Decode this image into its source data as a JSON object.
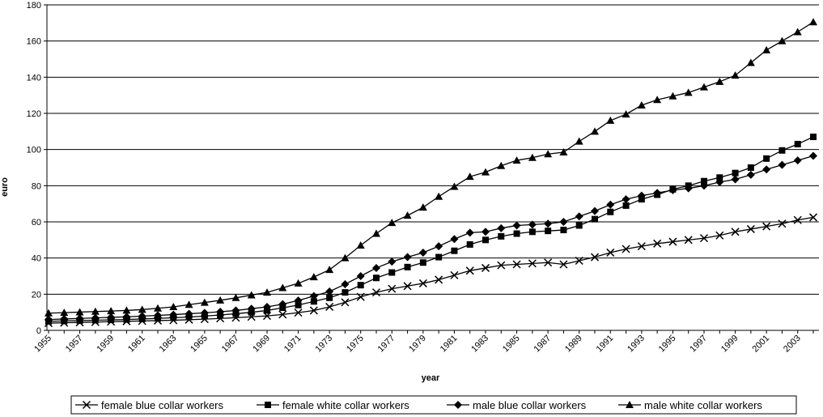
{
  "chart_data": {
    "type": "line",
    "title": "",
    "xlabel": "year",
    "ylabel": "euro",
    "ylim": [
      0,
      180
    ],
    "y_ticks": [
      0,
      20,
      40,
      60,
      80,
      100,
      120,
      140,
      160,
      180
    ],
    "xlim": [
      1955,
      2004
    ],
    "x_tick_labels": [
      "1955",
      "1957",
      "1959",
      "1961",
      "1963",
      "1965",
      "1967",
      "1969",
      "1971",
      "1973",
      "1975",
      "1977",
      "1979",
      "1981",
      "1983",
      "1985",
      "1987",
      "1989",
      "1991",
      "1993",
      "1995",
      "1997",
      "1999",
      "2001",
      "2003"
    ],
    "x": [
      1955,
      1956,
      1957,
      1958,
      1959,
      1960,
      1961,
      1962,
      1963,
      1964,
      1965,
      1966,
      1967,
      1968,
      1969,
      1970,
      1971,
      1972,
      1973,
      1974,
      1975,
      1976,
      1977,
      1978,
      1979,
      1980,
      1981,
      1982,
      1983,
      1984,
      1985,
      1986,
      1987,
      1988,
      1989,
      1990,
      1991,
      1992,
      1993,
      1994,
      1995,
      1996,
      1997,
      1998,
      1999,
      2000,
      2001,
      2002,
      2003,
      2004
    ],
    "grid": "horizontal",
    "legend_position": "bottom",
    "series": [
      {
        "name": "female blue collar workers",
        "marker": "x",
        "values": [
          4,
          4.2,
          4.4,
          4.6,
          4.8,
          5,
          5.2,
          5.4,
          5.6,
          5.9,
          6.2,
          6.6,
          7,
          7.5,
          8,
          8.8,
          9.8,
          11,
          13,
          15.5,
          18.5,
          21,
          23,
          24.5,
          26,
          28,
          30.5,
          33,
          34.5,
          36,
          36.5,
          37,
          37.5,
          36.5,
          38.5,
          40.5,
          43,
          45,
          46.5,
          48,
          49,
          50,
          51,
          52.5,
          54.5,
          56,
          57.5,
          59,
          61,
          62.5
        ]
      },
      {
        "name": "female white collar workers",
        "marker": "square",
        "values": [
          5,
          5.2,
          5.4,
          5.6,
          5.8,
          6,
          6.3,
          6.6,
          7,
          7.4,
          7.9,
          8.5,
          9.2,
          10,
          11,
          12.5,
          14,
          16,
          18,
          21,
          25,
          29,
          32,
          35,
          37.5,
          40.5,
          44,
          47.5,
          50,
          52,
          53.5,
          54.5,
          55,
          55.5,
          58,
          61.5,
          65.5,
          69,
          72.5,
          75,
          78,
          80,
          82.5,
          84.5,
          87,
          90,
          95,
          99.5,
          103,
          107
        ]
      },
      {
        "name": "male blue collar workers",
        "marker": "diamond",
        "values": [
          6,
          6.3,
          6.6,
          6.9,
          7.2,
          7.5,
          7.9,
          8.3,
          8.7,
          9.2,
          9.7,
          10.3,
          11,
          12,
          13,
          14.5,
          16.5,
          19,
          21.5,
          25.5,
          30,
          34.5,
          38,
          40.5,
          43,
          46.5,
          50.5,
          54,
          54.5,
          56.5,
          58,
          58.5,
          59,
          60,
          63,
          66,
          69.5,
          72.5,
          74.5,
          76,
          77.5,
          78.5,
          80,
          82,
          83.5,
          86,
          89,
          91.5,
          94,
          96.5
        ]
      },
      {
        "name": "male white collar workers",
        "marker": "triangle",
        "values": [
          9.5,
          9.8,
          10.1,
          10.4,
          10.7,
          11,
          11.5,
          12.2,
          13,
          14.2,
          15.4,
          16.6,
          18,
          19.5,
          21,
          23.5,
          26,
          29.5,
          33.5,
          40,
          47,
          53.5,
          59.5,
          63.5,
          68,
          74,
          79.5,
          85,
          87.5,
          91,
          94,
          95.5,
          97.5,
          98.5,
          104.5,
          110,
          116,
          119.5,
          124.5,
          127.5,
          129.5,
          131.5,
          134.5,
          137.5,
          141,
          148,
          155,
          160,
          165,
          170.5
        ]
      }
    ]
  }
}
